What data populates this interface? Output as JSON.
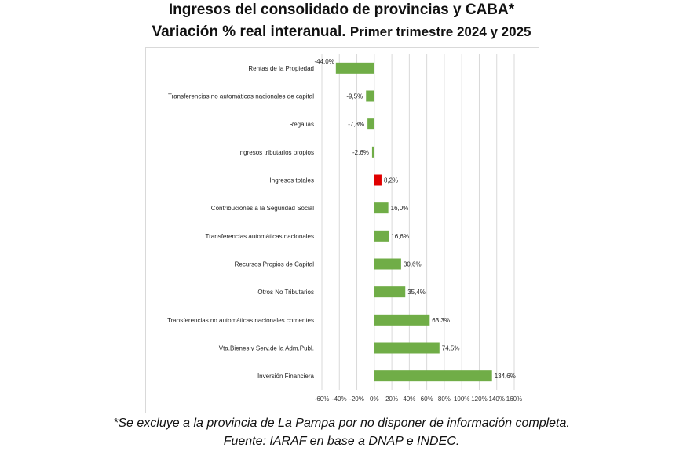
{
  "header": {
    "title": "Ingresos del consolidado de provincias y CABA*",
    "subtitle_main": "Variación % real interanual.",
    "subtitle_period": "Primer trimestre 2024 y 2025"
  },
  "footer": {
    "note": "*Se excluye a la provincia de La Pampa por no disponer de información  completa.",
    "source": "Fuente:  IARAF en base a DNAP e INDEC."
  },
  "colors": {
    "positive": "#70ad47",
    "highlight": "#e00000"
  },
  "chart_data": {
    "type": "bar",
    "orientation": "horizontal",
    "categories": [
      "Rentas de la Propiedad",
      "Transferencias no automáticas nacionales de capital",
      "Regalías",
      "Ingresos tributarios propios",
      "Ingresos totales",
      "Contribuciones a la Seguridad Social",
      "Transferencias automáticas nacionales",
      "Recursos Propios de Capital",
      "Otros No Tributarios",
      "Transferencias no automáticas nacionales corrientes",
      "Vta.Bienes y Serv.de la Adm.Publ.",
      "Inversión Financiera"
    ],
    "values": [
      -44.0,
      -9.5,
      -7.8,
      -2.6,
      8.2,
      16.0,
      16.6,
      30.6,
      35.4,
      63.3,
      74.5,
      134.6
    ],
    "value_labels": [
      "-44,0%",
      "-9,5%",
      "-7,8%",
      "-2,6%",
      "8,2%",
      "16,0%",
      "16,6%",
      "30,6%",
      "35,4%",
      "63,3%",
      "74,5%",
      "134,6%"
    ],
    "highlight_category": "Ingresos totales",
    "xlim": [
      -60,
      160
    ],
    "x_ticks": [
      -60,
      -40,
      -20,
      0,
      20,
      40,
      60,
      80,
      100,
      120,
      140,
      160
    ],
    "x_tick_labels": [
      "-60%",
      "-40%",
      "-20%",
      "0%",
      "20%",
      "40%",
      "60%",
      "80%",
      "100%",
      "120%",
      "140%",
      "160%"
    ],
    "grid": true,
    "legend": "none"
  }
}
